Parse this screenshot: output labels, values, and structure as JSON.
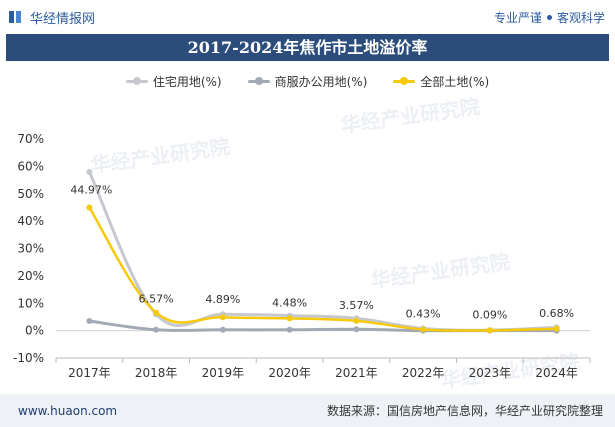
{
  "header": {
    "brand": "华经情报网",
    "tagline_left": "专业严谨",
    "tagline_right": "客观科学"
  },
  "watermark": "华经产业研究院",
  "footer": {
    "site": "www.huaon.com",
    "source": "数据来源：国信房地产信息网，华经产业研究院整理"
  },
  "chart_data": {
    "type": "line",
    "title": "2017-2024年焦作市土地溢价率",
    "categories": [
      "2017年",
      "2018年",
      "2019年",
      "2020年",
      "2021年",
      "2022年",
      "2023年",
      "2024年"
    ],
    "y_ticks": [
      "70%",
      "60%",
      "50%",
      "40%",
      "30%",
      "20%",
      "10%",
      "0%",
      "-10%"
    ],
    "ylim": [
      -10,
      70
    ],
    "grid": false,
    "legend_position": "top",
    "series": [
      {
        "name": "住宅用地(%)",
        "color": "#c5c8ce",
        "values": [
          58.0,
          6.0,
          6.0,
          5.5,
          4.5,
          0.8,
          0.2,
          1.2
        ]
      },
      {
        "name": "商服办公用地(%)",
        "color": "#a3a9b4",
        "values": [
          3.5,
          0.3,
          0.3,
          0.3,
          0.5,
          0.0,
          0.0,
          0.0
        ]
      },
      {
        "name": "全部土地(%)",
        "color": "#f6c90b",
        "values": [
          44.97,
          6.57,
          4.89,
          4.48,
          3.57,
          0.43,
          0.09,
          0.68
        ]
      }
    ],
    "data_labels": [
      "44.97%",
      "6.57%",
      "4.89%",
      "4.48%",
      "3.57%",
      "0.43%",
      "0.09%",
      "0.68%"
    ]
  }
}
